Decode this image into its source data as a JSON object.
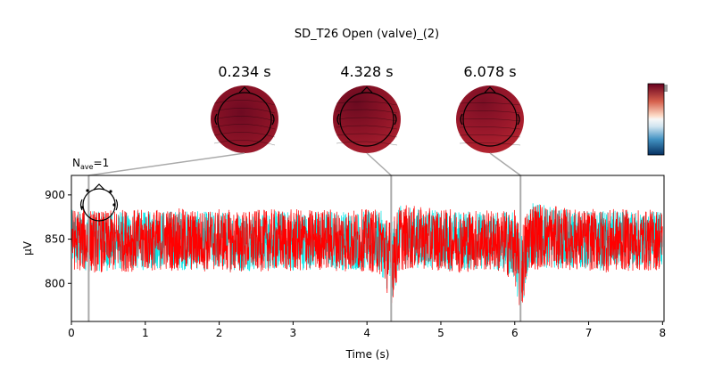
{
  "chart_data": {
    "type": "line",
    "title": "SD_T26 Open (valve)_(2)",
    "nave_label": "N",
    "nave_sub": "ave",
    "nave_value": "=1",
    "xlabel": "Time (s)",
    "ylabel": "µV",
    "xlim": [
      0,
      8.02
    ],
    "ylim": [
      757,
      922
    ],
    "x_ticks": [
      0,
      1,
      2,
      3,
      4,
      5,
      6,
      7,
      8
    ],
    "y_ticks": [
      800,
      850,
      900
    ],
    "grid": false,
    "topomap_times": [
      "0.234 s",
      "4.328 s",
      "6.078 s"
    ],
    "topomap_time_values": [
      0.234,
      4.328,
      6.078
    ],
    "colors": {
      "trace": "#ff0000",
      "trace_alt": "#00e5e5",
      "connector": "#aaaaaa"
    },
    "series": [
      {
        "x": [
          0.0,
          0.25,
          0.5,
          0.75,
          1.0,
          1.25,
          1.5,
          1.75,
          2.0,
          2.25,
          2.5,
          2.75,
          3.0,
          3.25,
          3.5,
          3.75,
          4.0,
          4.2,
          4.328,
          4.45,
          4.75,
          5.0,
          5.25,
          5.5,
          5.75,
          6.0,
          6.078,
          6.2,
          6.5,
          6.75,
          7.0,
          7.25,
          7.5,
          7.75,
          8.0
        ],
        "values": [
          850,
          848,
          847,
          849,
          848,
          850,
          849,
          848,
          849,
          847,
          848,
          849,
          848,
          849,
          850,
          848,
          849,
          846,
          823,
          852,
          851,
          849,
          848,
          849,
          848,
          843,
          812,
          855,
          852,
          850,
          849,
          848,
          849,
          848,
          850
        ],
        "range": [
          35,
          36,
          35,
          36,
          35,
          35,
          36,
          35,
          35,
          36,
          35,
          35,
          36,
          35,
          35,
          36,
          35,
          38,
          48,
          38,
          35,
          35,
          36,
          35,
          35,
          40,
          52,
          40,
          36,
          35,
          35,
          36,
          35,
          35,
          35
        ]
      }
    ]
  }
}
